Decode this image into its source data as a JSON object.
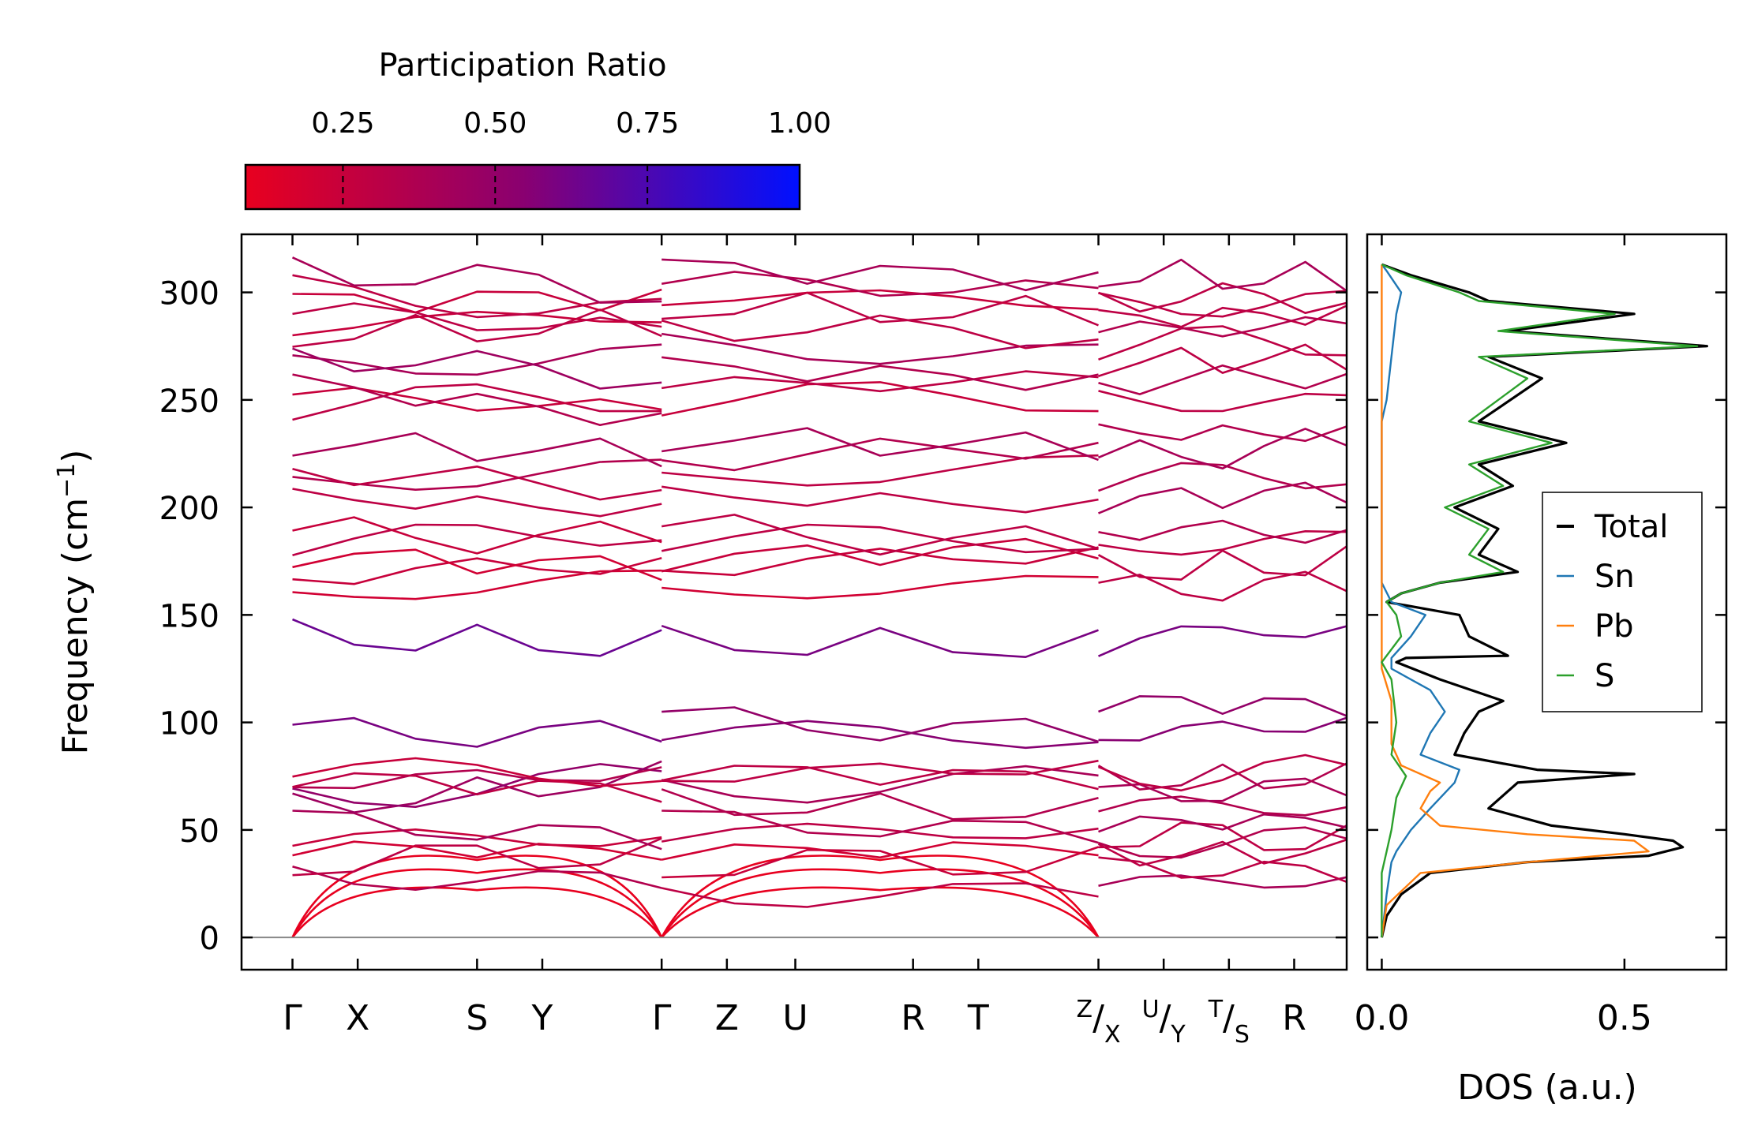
{
  "chart_data": [
    {
      "type": "line",
      "title": "",
      "ylabel_main": "Frequency (cm",
      "ylabel_sup": "−1",
      "ylabel_close": ")",
      "ylim": [
        -15,
        327
      ],
      "yticks": [
        0,
        50,
        100,
        150,
        200,
        250,
        300
      ],
      "kpath": [
        {
          "label": "Γ",
          "x": 0.0
        },
        {
          "label": "X",
          "x": 0.82
        },
        {
          "label": "S",
          "x": 2.32
        },
        {
          "label": "Y",
          "x": 3.14
        },
        {
          "label": "Γ",
          "x": 4.64
        },
        {
          "label": "Z",
          "x": 5.46
        },
        {
          "label": "U",
          "x": 6.32
        },
        {
          "label": "R",
          "x": 7.8
        },
        {
          "label": "T",
          "x": 8.62
        },
        {
          "label": "Z",
          "sub": "X",
          "x": 10.13
        },
        {
          "label": "U",
          "sub": "Y",
          "x": 10.95
        },
        {
          "label": "T",
          "sub": "S",
          "x": 11.77
        },
        {
          "label": "R",
          "x": 12.59
        }
      ],
      "xlim": [
        -0.64,
        13.25
      ],
      "colorbar": {
        "title": "Participation Ratio",
        "ticks": [
          "0.25",
          "0.50",
          "0.75",
          "1.00"
        ],
        "tick_values": [
          0.25,
          0.5,
          0.75,
          1.0
        ],
        "range": [
          0.09,
          1.0
        ],
        "color_low": "#e8001f",
        "color_mid": "#8a0070",
        "color_high": "#0010ff"
      },
      "segments": [
        {
          "x0": 0.0,
          "x1": 4.64,
          "levels": [
            [
              0,
              0,
              0.05
            ],
            [
              0,
              0,
              0.05
            ],
            [
              0,
              0,
              0.05
            ],
            [
              32,
              22,
              0.35
            ],
            [
              35,
              40,
              0.3
            ],
            [
              42,
              40,
              0.2
            ],
            [
              44,
              48,
              0.25
            ],
            [
              55,
              45,
              0.4
            ],
            [
              60,
              75,
              0.45
            ],
            [
              66,
              74,
              0.5
            ],
            [
              72,
              77,
              0.35
            ],
            [
              75,
              68,
              0.3
            ],
            [
              78,
              76,
              0.25
            ],
            [
              96,
              94,
              0.6
            ],
            [
              140,
              135,
              0.65
            ],
            [
              158,
              168,
              0.2
            ],
            [
              168,
              175,
              0.25
            ],
            [
              178,
              172,
              0.2
            ],
            [
              183,
              190,
              0.3
            ],
            [
              188,
              185,
              0.25
            ],
            [
              205,
              198,
              0.3
            ],
            [
              210,
              218,
              0.35
            ],
            [
              218,
              208,
              0.3
            ],
            [
              230,
              225,
              0.4
            ],
            [
              248,
              252,
              0.3
            ],
            [
              253,
              245,
              0.25
            ],
            [
              258,
              240,
              0.35
            ],
            [
              265,
              270,
              0.4
            ],
            [
              272,
              260,
              0.45
            ],
            [
              280,
              285,
              0.3
            ],
            [
              284,
              290,
              0.25
            ],
            [
              292,
              282,
              0.3
            ],
            [
              296,
              298,
              0.25
            ],
            [
              301,
              290,
              0.3
            ],
            [
              312,
              300,
              0.4
            ]
          ]
        },
        {
          "x0": 4.64,
          "x1": 10.13,
          "levels": [
            [
              0,
              0,
              0.05
            ],
            [
              0,
              0,
              0.05
            ],
            [
              0,
              0,
              0.05
            ],
            [
              22,
              18,
              0.3
            ],
            [
              34,
              36,
              0.25
            ],
            [
              40,
              42,
              0.2
            ],
            [
              46,
              52,
              0.3
            ],
            [
              55,
              48,
              0.35
            ],
            [
              62,
              58,
              0.35
            ],
            [
              70,
              72,
              0.4
            ],
            [
              75,
              80,
              0.3
            ],
            [
              78,
              74,
              0.3
            ],
            [
              95,
              94,
              0.55
            ],
            [
              102,
              94,
              0.5
            ],
            [
              137,
              135,
              0.6
            ],
            [
              160,
              165,
              0.2
            ],
            [
              172,
              180,
              0.25
            ],
            [
              176,
              182,
              0.25
            ],
            [
              185,
              186,
              0.3
            ],
            [
              190,
              182,
              0.3
            ],
            [
              206,
              200,
              0.3
            ],
            [
              212,
              220,
              0.3
            ],
            [
              222,
              230,
              0.35
            ],
            [
              232,
              228,
              0.4
            ],
            [
              250,
              252,
              0.25
            ],
            [
              256,
              260,
              0.3
            ],
            [
              266,
              258,
              0.35
            ],
            [
              275,
              270,
              0.4
            ],
            [
              285,
              280,
              0.3
            ],
            [
              293,
              290,
              0.3
            ],
            [
              298,
              296,
              0.25
            ],
            [
              306,
              300,
              0.35
            ],
            [
              312,
              306,
              0.4
            ]
          ]
        },
        {
          "x0": 10.13,
          "x1": 13.25,
          "levels": [
            [
              24,
              28,
              0.4
            ],
            [
              33,
              30,
              0.3
            ],
            [
              38,
              40,
              0.3
            ],
            [
              43,
              45,
              0.35
            ],
            [
              48,
              46,
              0.3
            ],
            [
              53,
              55,
              0.4
            ],
            [
              60,
              62,
              0.35
            ],
            [
              66,
              70,
              0.4
            ],
            [
              73,
              74,
              0.35
            ],
            [
              76,
              77,
              0.3
            ],
            [
              94,
              100,
              0.55
            ],
            [
              110,
              108,
              0.5
            ],
            [
              134,
              148,
              0.6
            ],
            [
              162,
              164,
              0.3
            ],
            [
              170,
              174,
              0.3
            ],
            [
              180,
              186,
              0.3
            ],
            [
              190,
              188,
              0.35
            ],
            [
              203,
              208,
              0.4
            ],
            [
              213,
              216,
              0.35
            ],
            [
              222,
              230,
              0.4
            ],
            [
              235,
              234,
              0.35
            ],
            [
              250,
              248,
              0.3
            ],
            [
              258,
              262,
              0.35
            ],
            [
              267,
              270,
              0.3
            ],
            [
              276,
              278,
              0.3
            ],
            [
              282,
              285,
              0.35
            ],
            [
              288,
              290,
              0.3
            ],
            [
              294,
              295,
              0.3
            ],
            [
              298,
              297,
              0.3
            ],
            [
              308,
              306,
              0.4
            ]
          ]
        }
      ]
    },
    {
      "type": "line",
      "xlabel": "DOS (a.u.)",
      "xticks": [
        "0.0",
        "0.5"
      ],
      "xtick_values": [
        0.0,
        0.5
      ],
      "xlim": [
        -0.03,
        0.71
      ],
      "ylim": [
        -15,
        327
      ],
      "legend_position": "center-right",
      "series": [
        {
          "name": "Total",
          "color": "#000000",
          "points": [
            [
              0.0,
              0
            ],
            [
              0.01,
              10
            ],
            [
              0.04,
              20
            ],
            [
              0.1,
              30
            ],
            [
              0.3,
              35
            ],
            [
              0.55,
              38
            ],
            [
              0.62,
              42
            ],
            [
              0.6,
              45
            ],
            [
              0.5,
              48
            ],
            [
              0.35,
              52
            ],
            [
              0.22,
              60
            ],
            [
              0.28,
              72
            ],
            [
              0.52,
              76
            ],
            [
              0.32,
              78
            ],
            [
              0.15,
              85
            ],
            [
              0.17,
              95
            ],
            [
              0.2,
              105
            ],
            [
              0.25,
              110
            ],
            [
              0.12,
              120
            ],
            [
              0.03,
              128
            ],
            [
              0.05,
              130
            ],
            [
              0.26,
              131
            ],
            [
              0.18,
              140
            ],
            [
              0.16,
              150
            ],
            [
              0.01,
              156
            ],
            [
              0.04,
              160
            ],
            [
              0.12,
              165
            ],
            [
              0.28,
              170
            ],
            [
              0.2,
              178
            ],
            [
              0.24,
              190
            ],
            [
              0.15,
              200
            ],
            [
              0.27,
              210
            ],
            [
              0.2,
              220
            ],
            [
              0.38,
              230
            ],
            [
              0.2,
              240
            ],
            [
              0.33,
              260
            ],
            [
              0.22,
              270
            ],
            [
              0.67,
              275
            ],
            [
              0.26,
              282
            ],
            [
              0.52,
              290
            ],
            [
              0.22,
              296
            ],
            [
              0.18,
              300
            ],
            [
              0.06,
              308
            ],
            [
              0.0,
              313
            ]
          ]
        },
        {
          "name": "Sn",
          "color": "#1f77b4",
          "points": [
            [
              0.0,
              0
            ],
            [
              0.01,
              20
            ],
            [
              0.02,
              35
            ],
            [
              0.03,
              40
            ],
            [
              0.06,
              50
            ],
            [
              0.1,
              60
            ],
            [
              0.15,
              72
            ],
            [
              0.16,
              78
            ],
            [
              0.08,
              85
            ],
            [
              0.1,
              95
            ],
            [
              0.13,
              105
            ],
            [
              0.1,
              115
            ],
            [
              0.02,
              125
            ],
            [
              0.02,
              130
            ],
            [
              0.06,
              140
            ],
            [
              0.09,
              150
            ],
            [
              0.02,
              156
            ],
            [
              0.0,
              165
            ],
            [
              0.0,
              200
            ],
            [
              0.0,
              240
            ],
            [
              0.01,
              250
            ],
            [
              0.02,
              270
            ],
            [
              0.03,
              290
            ],
            [
              0.04,
              300
            ],
            [
              0.01,
              310
            ],
            [
              0.0,
              313
            ]
          ]
        },
        {
          "name": "Pb",
          "color": "#ff7f0e",
          "points": [
            [
              0.0,
              0
            ],
            [
              0.01,
              15
            ],
            [
              0.08,
              30
            ],
            [
              0.3,
              35
            ],
            [
              0.55,
              40
            ],
            [
              0.52,
              45
            ],
            [
              0.3,
              48
            ],
            [
              0.12,
              52
            ],
            [
              0.08,
              60
            ],
            [
              0.1,
              68
            ],
            [
              0.12,
              72
            ],
            [
              0.04,
              80
            ],
            [
              0.02,
              90
            ],
            [
              0.02,
              110
            ],
            [
              0.0,
              125
            ],
            [
              0.0,
              313
            ]
          ]
        },
        {
          "name": "S",
          "color": "#2ca02c",
          "points": [
            [
              0.0,
              0
            ],
            [
              0.0,
              30
            ],
            [
              0.01,
              40
            ],
            [
              0.02,
              50
            ],
            [
              0.03,
              65
            ],
            [
              0.05,
              75
            ],
            [
              0.02,
              85
            ],
            [
              0.03,
              100
            ],
            [
              0.02,
              120
            ],
            [
              0.0,
              128
            ],
            [
              0.04,
              140
            ],
            [
              0.03,
              150
            ],
            [
              0.01,
              156
            ],
            [
              0.04,
              160
            ],
            [
              0.12,
              165
            ],
            [
              0.25,
              170
            ],
            [
              0.18,
              178
            ],
            [
              0.22,
              190
            ],
            [
              0.13,
              200
            ],
            [
              0.25,
              210
            ],
            [
              0.18,
              220
            ],
            [
              0.35,
              230
            ],
            [
              0.18,
              240
            ],
            [
              0.3,
              260
            ],
            [
              0.2,
              270
            ],
            [
              0.65,
              275
            ],
            [
              0.24,
              282
            ],
            [
              0.48,
              290
            ],
            [
              0.2,
              296
            ],
            [
              0.16,
              300
            ],
            [
              0.05,
              308
            ],
            [
              0.0,
              313
            ]
          ]
        }
      ]
    }
  ]
}
